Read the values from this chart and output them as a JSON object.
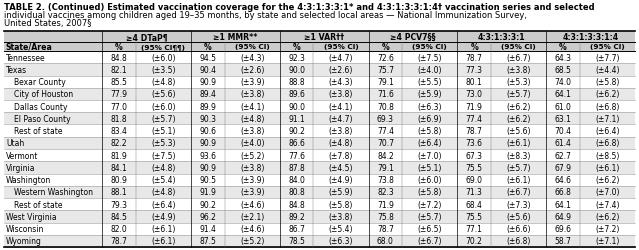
{
  "title_lines": [
    "TABLE 2. (Continued) Estimated vaccination coverage for the 4:3:1:3:3:1* and 4:3:1:3:3:1:4† vaccination series and selected",
    "individual vaccines among children aged 19–35 months, by state and selected local areas — National Immunization Survey,",
    "United States, 2007§"
  ],
  "col_headers_row1": [
    "≥4 DTaP¶",
    "≥1 MMR**",
    "≥1 VAR††",
    "≥4 PCV7§§",
    "4:3:1:3:3:1",
    "4:3:1:3:3:1:4"
  ],
  "col_header2_pct": "%",
  "col_header2_ci": [
    "(95% CI¶¶)",
    "(95% CI)",
    "(95% CI)",
    "(95% CI)",
    "(95% CI)",
    "(95% CI)"
  ],
  "row_label": "State/Area",
  "rows": [
    {
      "name": "Tennessee",
      "indent": false,
      "values": [
        "84.8",
        "(±6.0)",
        "94.5",
        "(±4.3)",
        "92.3",
        "(±4.7)",
        "72.6",
        "(±7.5)",
        "78.7",
        "(±6.7)",
        "64.3",
        "(±7.7)"
      ]
    },
    {
      "name": "Texas",
      "indent": false,
      "values": [
        "82.1",
        "(±3.5)",
        "90.4",
        "(±2.6)",
        "90.0",
        "(±2.6)",
        "75.7",
        "(±4.0)",
        "77.3",
        "(±3.8)",
        "68.5",
        "(±4.4)"
      ]
    },
    {
      "name": "Bexar County",
      "indent": true,
      "values": [
        "85.5",
        "(±4.8)",
        "90.9",
        "(±3.9)",
        "88.8",
        "(±4.3)",
        "79.1",
        "(±5.5)",
        "80.1",
        "(±5.3)",
        "74.0",
        "(±5.8)"
      ]
    },
    {
      "name": "City of Houston",
      "indent": true,
      "values": [
        "77.9",
        "(±5.6)",
        "89.4",
        "(±3.8)",
        "89.6",
        "(±3.8)",
        "71.6",
        "(±5.9)",
        "73.0",
        "(±5.7)",
        "64.1",
        "(±6.2)"
      ]
    },
    {
      "name": "Dallas County",
      "indent": true,
      "values": [
        "77.0",
        "(±6.0)",
        "89.9",
        "(±4.1)",
        "90.0",
        "(±4.1)",
        "70.8",
        "(±6.3)",
        "71.9",
        "(±6.2)",
        "61.0",
        "(±6.8)"
      ]
    },
    {
      "name": "El Paso County",
      "indent": true,
      "values": [
        "81.8",
        "(±5.7)",
        "90.3",
        "(±4.8)",
        "91.1",
        "(±4.7)",
        "69.3",
        "(±6.9)",
        "77.4",
        "(±6.2)",
        "63.1",
        "(±7.1)"
      ]
    },
    {
      "name": "Rest of state",
      "indent": true,
      "values": [
        "83.4",
        "(±5.1)",
        "90.6",
        "(±3.8)",
        "90.2",
        "(±3.8)",
        "77.4",
        "(±5.8)",
        "78.7",
        "(±5.6)",
        "70.4",
        "(±6.4)"
      ]
    },
    {
      "name": "Utah",
      "indent": false,
      "values": [
        "82.2",
        "(±5.3)",
        "90.9",
        "(±4.0)",
        "86.6",
        "(±4.8)",
        "70.7",
        "(±6.4)",
        "73.6",
        "(±6.1)",
        "61.4",
        "(±6.8)"
      ]
    },
    {
      "name": "Vermont",
      "indent": false,
      "values": [
        "81.9",
        "(±7.5)",
        "93.6",
        "(±5.2)",
        "77.6",
        "(±7.8)",
        "84.2",
        "(±7.0)",
        "67.3",
        "(±8.3)",
        "62.7",
        "(±8.5)"
      ]
    },
    {
      "name": "Virginia",
      "indent": false,
      "values": [
        "84.1",
        "(±4.8)",
        "90.9",
        "(±3.8)",
        "87.8",
        "(±4.5)",
        "79.1",
        "(±5.1)",
        "75.5",
        "(±5.7)",
        "67.9",
        "(±6.1)"
      ]
    },
    {
      "name": "Washington",
      "indent": false,
      "values": [
        "80.9",
        "(±5.4)",
        "90.5",
        "(±3.9)",
        "84.0",
        "(±4.9)",
        "73.8",
        "(±6.0)",
        "69.0",
        "(±6.1)",
        "64.6",
        "(±6.2)"
      ]
    },
    {
      "name": "Western Washington",
      "indent": true,
      "values": [
        "88.1",
        "(±4.8)",
        "91.9",
        "(±3.9)",
        "80.8",
        "(±5.9)",
        "82.3",
        "(±5.8)",
        "71.3",
        "(±6.7)",
        "66.8",
        "(±7.0)"
      ]
    },
    {
      "name": "Rest of state",
      "indent": true,
      "values": [
        "79.3",
        "(±6.4)",
        "90.2",
        "(±4.6)",
        "84.8",
        "(±5.8)",
        "71.9",
        "(±7.2)",
        "68.4",
        "(±7.3)",
        "64.1",
        "(±7.4)"
      ]
    },
    {
      "name": "West Virginia",
      "indent": false,
      "values": [
        "84.5",
        "(±4.9)",
        "96.2",
        "(±2.1)",
        "89.2",
        "(±3.8)",
        "75.8",
        "(±5.7)",
        "75.5",
        "(±5.6)",
        "64.9",
        "(±6.2)"
      ]
    },
    {
      "name": "Wisconsin",
      "indent": false,
      "values": [
        "82.0",
        "(±6.1)",
        "91.4",
        "(±4.6)",
        "86.7",
        "(±5.4)",
        "78.7",
        "(±6.5)",
        "77.1",
        "(±6.6)",
        "69.6",
        "(±7.2)"
      ]
    },
    {
      "name": "Wyoming",
      "indent": false,
      "values": [
        "78.7",
        "(±6.1)",
        "87.5",
        "(±5.2)",
        "78.5",
        "(±6.3)",
        "68.0",
        "(±6.7)",
        "70.2",
        "(±6.8)",
        "58.7",
        "(±7.1)"
      ]
    }
  ],
  "bg_color": "#ffffff",
  "header_bg": "#cccccc",
  "alt_row_bg": "#e8e8e8",
  "text_color": "#000000",
  "title_fontsize": 6.0,
  "header_fontsize": 5.6,
  "cell_fontsize": 5.5,
  "figure_width": 6.39,
  "figure_height": 2.51,
  "dpi": 100
}
